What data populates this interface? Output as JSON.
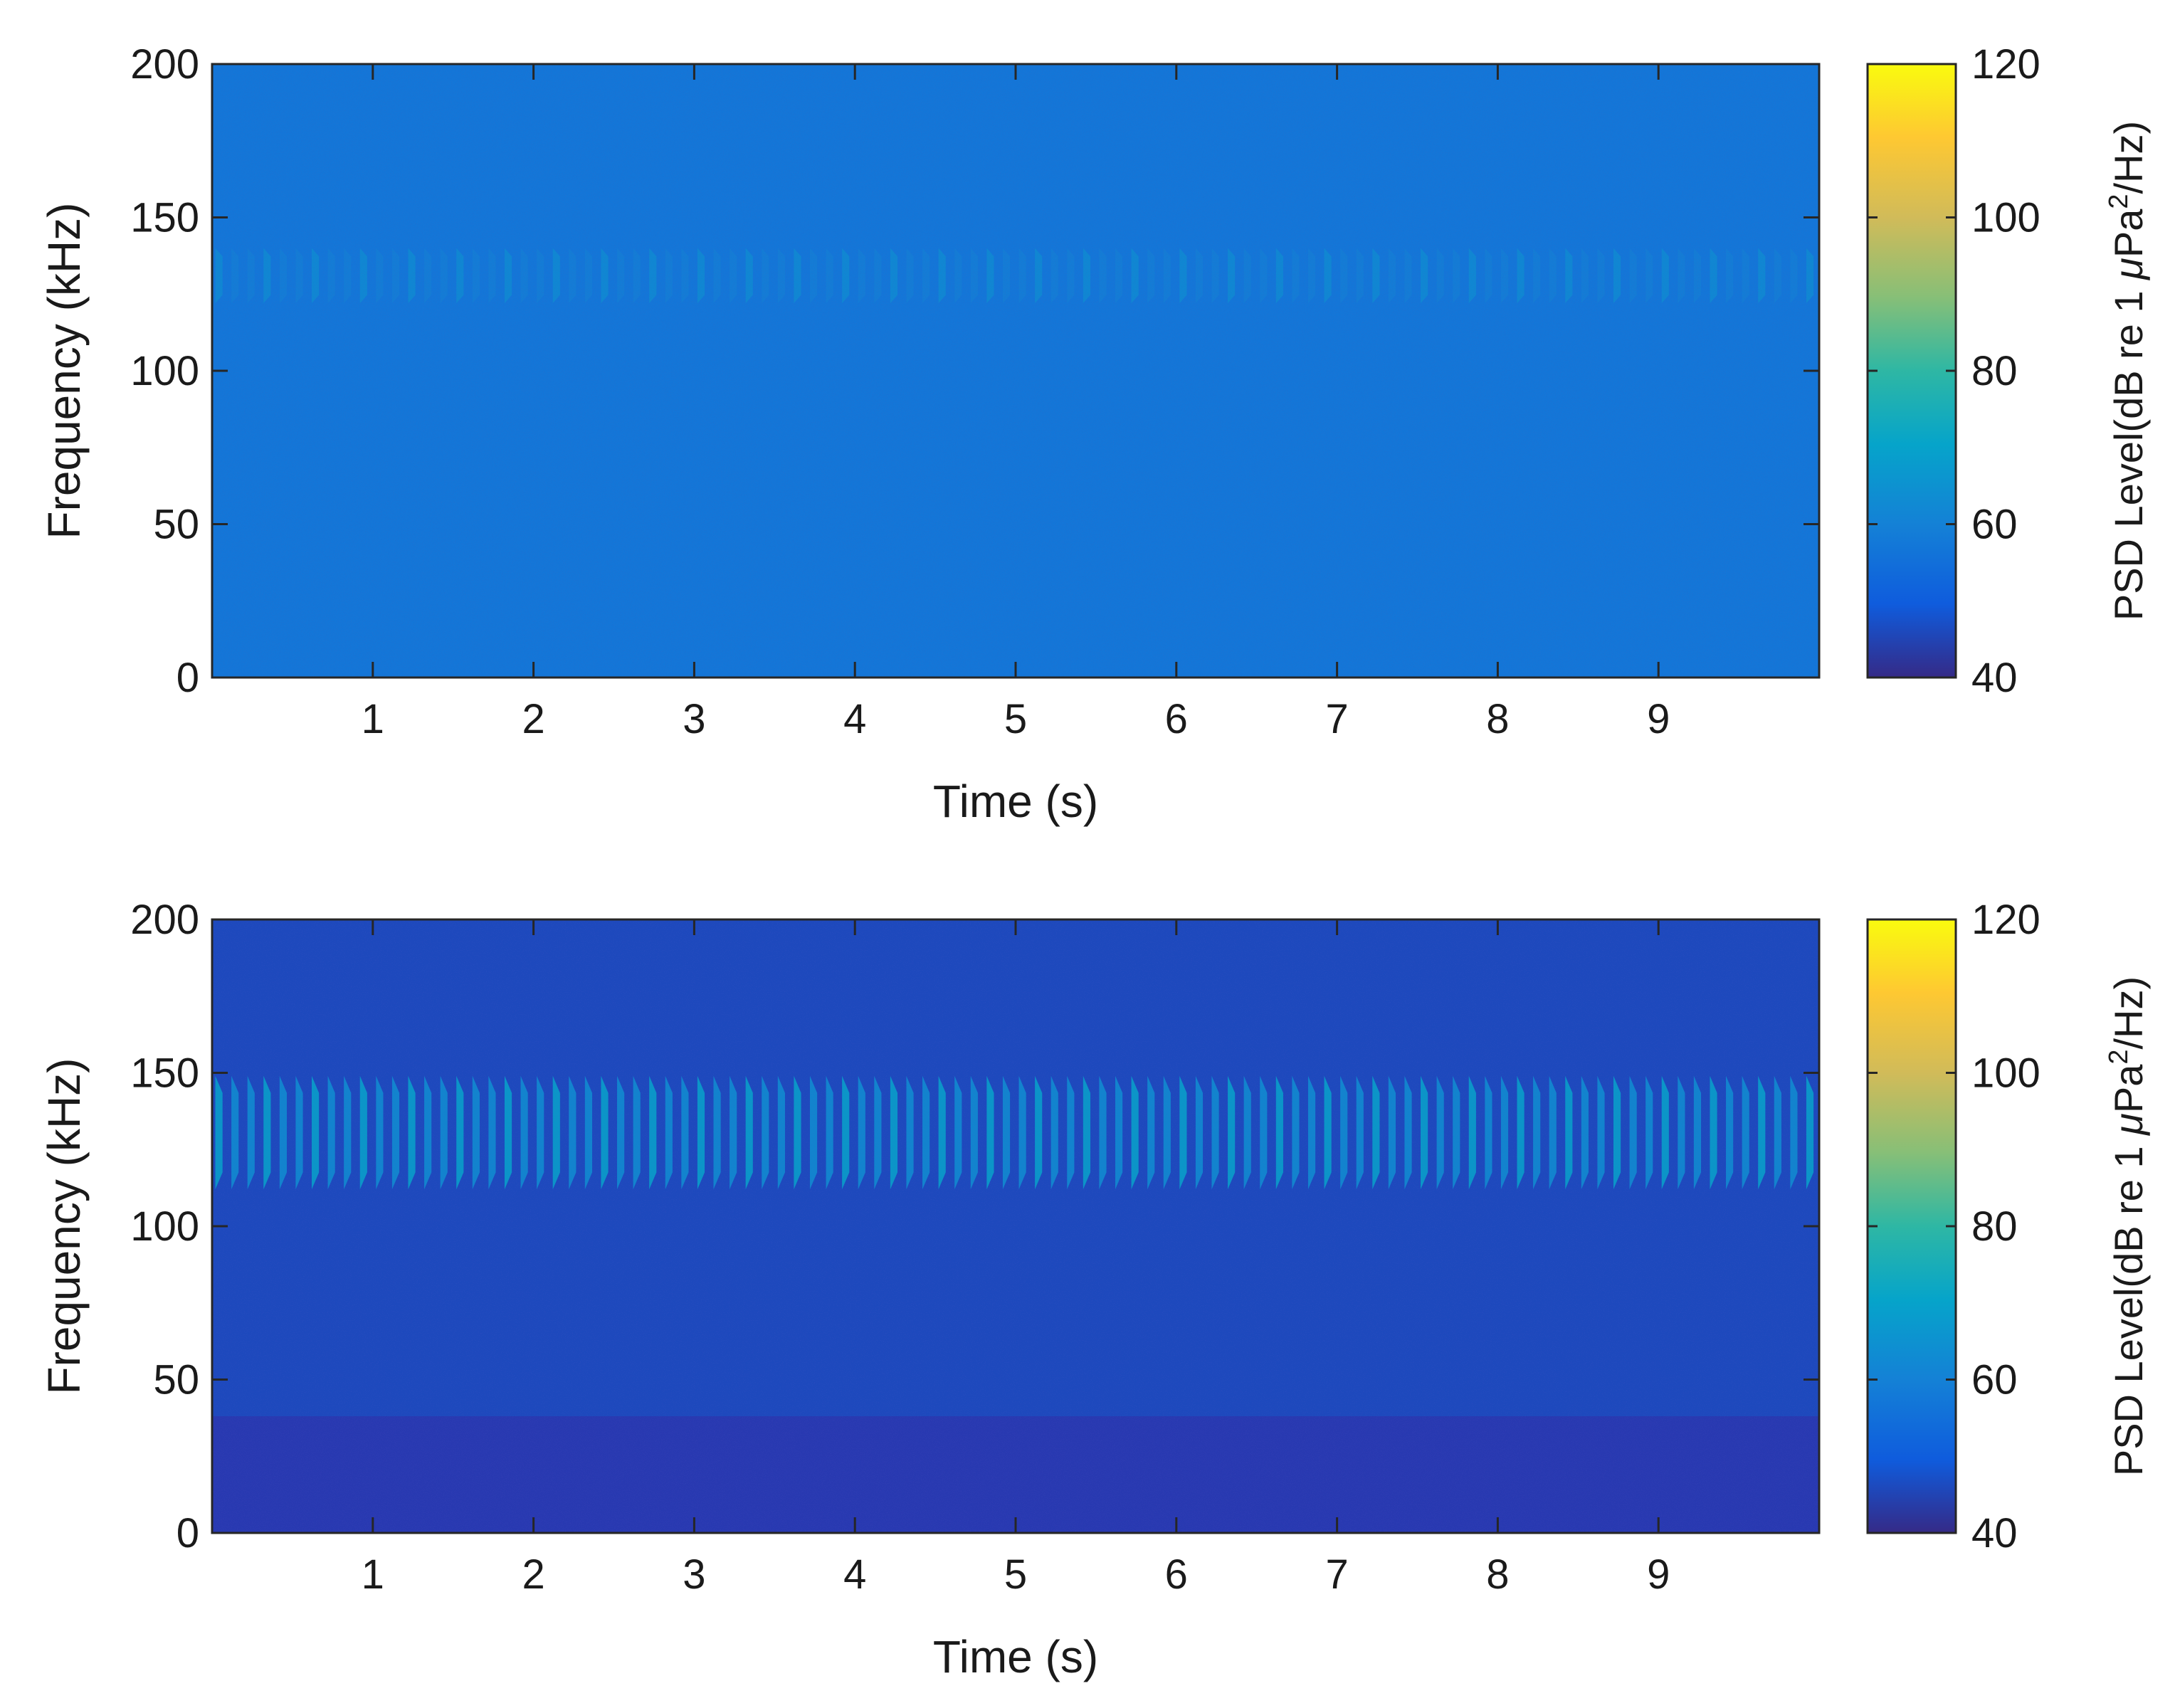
{
  "chart_data": [
    {
      "type": "heatmap",
      "title": "",
      "xlabel": "Time (s)",
      "ylabel": "Frequency (kHz)",
      "xlim": [
        0,
        10
      ],
      "ylim": [
        0,
        200
      ],
      "x_ticks": [
        1,
        2,
        3,
        4,
        5,
        6,
        7,
        8,
        9
      ],
      "y_ticks": [
        0,
        50,
        100,
        150,
        200
      ],
      "colorbar": {
        "label_main": "PSD Level(dB re 1 ",
        "label_mu": "μ",
        "label_pa": "Pa",
        "label_sup": "2",
        "label_end": "/Hz)",
        "range": [
          40,
          120
        ],
        "ticks": [
          40,
          60,
          80,
          100,
          120
        ]
      },
      "background_level_db": 57,
      "signal": {
        "freq_range_khz": [
          122,
          140
        ],
        "level_db": 66,
        "pulse_rate_hz": 10,
        "duration_s": [
          0,
          10
        ]
      }
    },
    {
      "type": "heatmap",
      "title": "",
      "xlabel": "Time (s)",
      "ylabel": "Frequency (kHz)",
      "xlim": [
        0,
        10
      ],
      "ylim": [
        0,
        200
      ],
      "x_ticks": [
        1,
        2,
        3,
        4,
        5,
        6,
        7,
        8,
        9
      ],
      "y_ticks": [
        0,
        50,
        100,
        150,
        200
      ],
      "colorbar": {
        "label_main": "PSD Level(dB re 1 ",
        "label_mu": "μ",
        "label_pa": "Pa",
        "label_sup": "2",
        "label_end": "/Hz)",
        "range": [
          40,
          120
        ],
        "ticks": [
          40,
          60,
          80,
          100,
          120
        ]
      },
      "background_level_db": 46,
      "signal": {
        "freq_range_khz": [
          112,
          149
        ],
        "level_db": 70,
        "pulse_rate_hz": 10,
        "duration_s": [
          0,
          10
        ]
      }
    }
  ]
}
